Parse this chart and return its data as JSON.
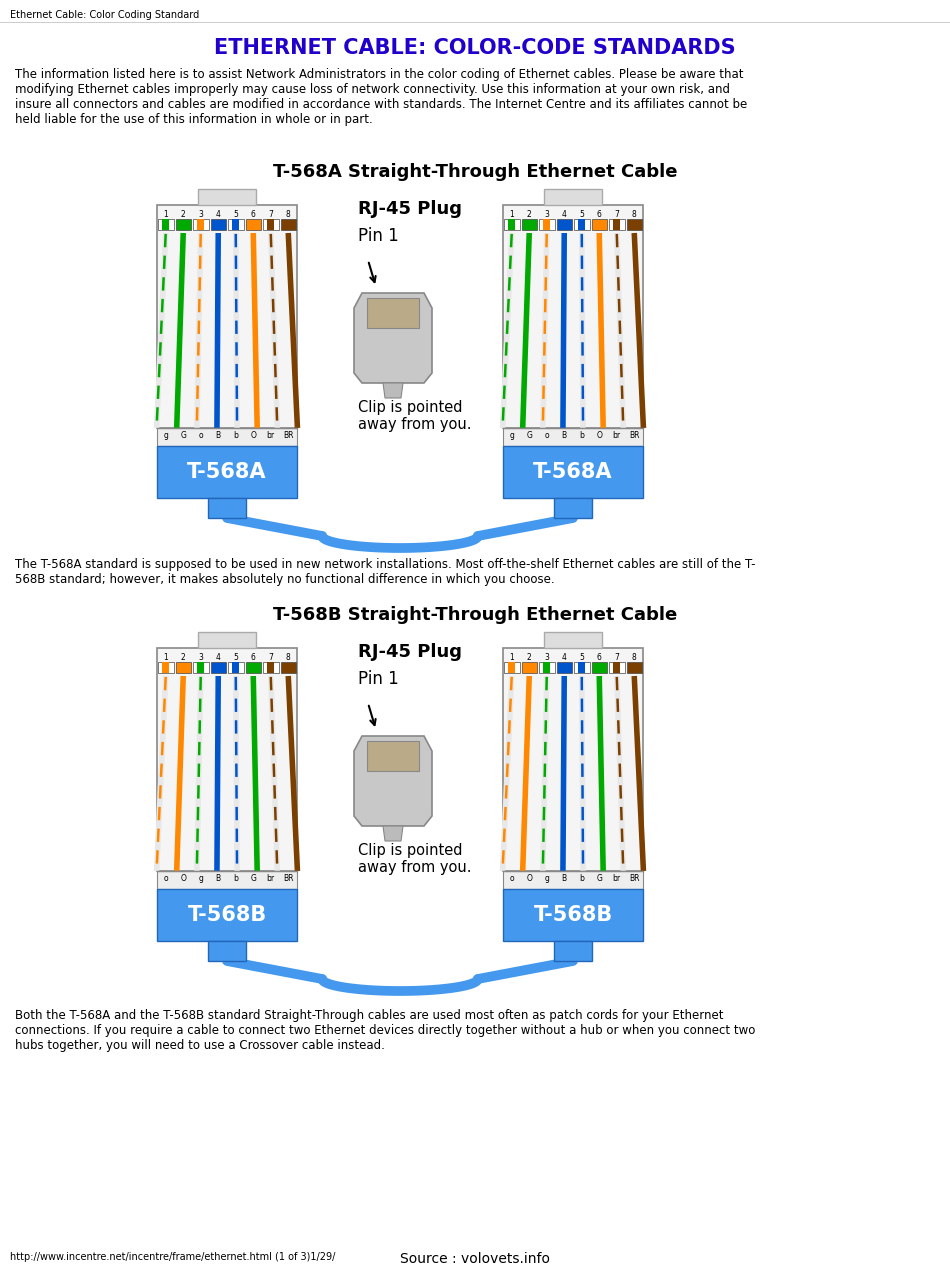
{
  "title": "ETHERNET CABLE: COLOR-CODE STANDARDS",
  "title_color": "#2200CC",
  "browser_tab": "Ethernet Cable: Color Coding Standard",
  "intro_text": "The information listed here is to assist Network Administrators in the color coding of Ethernet cables. Please be aware that\nmodifying Ethernet cables improperly may cause loss of network connectivity. Use this information at your own risk, and\ninsure all connectors and cables are modified in accordance with standards. The Internet Centre and its affiliates cannot be\nheld liable for the use of this information in whole or in part.",
  "section1_title": "T-568A Straight-Through Ethernet Cable",
  "section2_title": "T-568B Straight-Through Ethernet Cable",
  "rj45_label": "RJ-45 Plug",
  "pin1_label": "Pin 1",
  "clip_label": "Clip is pointed\naway from you.",
  "mid_text1": "The T-568A standard is supposed to be used in new network installations. Most off-the-shelf Ethernet cables are still of the T-\n568B standard; however, it makes absolutely no functional difference in which you choose.",
  "bottom_text": "Both the T-568A and the T-568B standard Straight-Through cables are used most often as patch cords for your Ethernet\nconnections. If you require a cable to connect two Ethernet devices directly together without a hub or when you connect two\nhubs together, you will need to use a Crossover cable instead.",
  "footer_left": "http://www.incentre.net/incentre/frame/ethernet.html (1 of 3)1/29/",
  "footer_right": "Source : volovets.info",
  "bg_color": "#FFFFFF",
  "wire_568A": [
    [
      "#FFFFFF",
      "#00AA00"
    ],
    [
      "#00AA00",
      null
    ],
    [
      "#FFFFFF",
      "#FF8800"
    ],
    [
      "#0055CC",
      null
    ],
    [
      "#FFFFFF",
      "#0055CC"
    ],
    [
      "#FF8800",
      null
    ],
    [
      "#FFFFFF",
      "#7B3F00"
    ],
    [
      "#7B3F00",
      null
    ]
  ],
  "wire_568B": [
    [
      "#FFFFFF",
      "#FF8800"
    ],
    [
      "#FF8800",
      null
    ],
    [
      "#FFFFFF",
      "#00AA00"
    ],
    [
      "#0055CC",
      null
    ],
    [
      "#FFFFFF",
      "#0055CC"
    ],
    [
      "#00AA00",
      null
    ],
    [
      "#FFFFFF",
      "#7B3F00"
    ],
    [
      "#7B3F00",
      null
    ]
  ],
  "labels_568A": [
    "g",
    "G",
    "o",
    "B",
    "b",
    "O",
    "br",
    "BR"
  ],
  "labels_568B": [
    "o",
    "O",
    "g",
    "B",
    "b",
    "G",
    "br",
    "BR"
  ],
  "pin_labels": [
    "1",
    "2",
    "3",
    "4",
    "5",
    "6",
    "7",
    "8"
  ],
  "connector_blue": "#4499EE",
  "connector_blue_dark": "#2266BB",
  "tab_color": "#DDDDDD",
  "body_color": "#F5F5F5",
  "sep_color": "#EEEEEE"
}
